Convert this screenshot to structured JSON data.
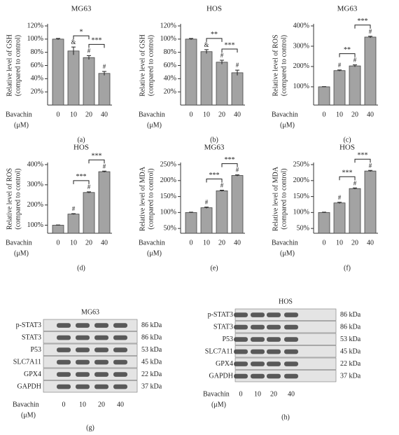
{
  "chart_data": [
    {
      "type": "bar",
      "title": "MG63",
      "ylabel": [
        "Relative level of GSH",
        "(compared to control)"
      ],
      "xlabel": [
        "Bavachin",
        "(μM)"
      ],
      "panel": "(a)",
      "categories": [
        "0",
        "10",
        "20",
        "40"
      ],
      "values": [
        100,
        82,
        72,
        48
      ],
      "errors": [
        1,
        6,
        3,
        3
      ],
      "markers": [
        null,
        "&",
        "#",
        "#"
      ],
      "color": "#a3a3a3",
      "brackets": [
        {
          "between": [
            "10",
            "20"
          ],
          "label": "*"
        },
        {
          "between": [
            "20",
            "40"
          ],
          "label": "***"
        }
      ],
      "ylim": [
        0,
        120
      ],
      "yticks": [
        {
          "value": 20,
          "label": "20%"
        },
        {
          "value": 40,
          "label": "40%"
        },
        {
          "value": 60,
          "label": "60%"
        },
        {
          "value": 80,
          "label": "80%"
        },
        {
          "value": 100,
          "label": "100%"
        },
        {
          "value": 120,
          "label": "120%"
        }
      ]
    },
    {
      "type": "bar",
      "title": "HOS",
      "ylabel": [
        "Relative level of GSH",
        "(compared to control)"
      ],
      "xlabel": [
        "Bavachin",
        "(μM)"
      ],
      "panel": "(b)",
      "categories": [
        "0",
        "10",
        "20",
        "40"
      ],
      "values": [
        100,
        81,
        65,
        49
      ],
      "errors": [
        1,
        3,
        3,
        4
      ],
      "markers": [
        null,
        "&",
        "#",
        "#"
      ],
      "color": "#a3a3a3",
      "brackets": [
        {
          "between": [
            "10",
            "20"
          ],
          "label": "**"
        },
        {
          "between": [
            "20",
            "40"
          ],
          "label": "***"
        }
      ],
      "ylim": [
        0,
        120
      ],
      "yticks": [
        {
          "value": 20,
          "label": "20%"
        },
        {
          "value": 40,
          "label": "40%"
        },
        {
          "value": 60,
          "label": "60%"
        },
        {
          "value": 80,
          "label": "80%"
        },
        {
          "value": 100,
          "label": "100%"
        },
        {
          "value": 120,
          "label": "120%"
        }
      ]
    },
    {
      "type": "bar",
      "title": "MG63",
      "ylabel": [
        "Relative level of ROS",
        "(compared to control)"
      ],
      "xlabel": [
        "Bavachin",
        "(μM)"
      ],
      "panel": "(c)",
      "categories": [
        "0",
        "10",
        "20",
        "40"
      ],
      "values": [
        100,
        180,
        203,
        345
      ],
      "errors": [
        1,
        3,
        5,
        4
      ],
      "markers": [
        null,
        "#",
        "#",
        "#"
      ],
      "color": "#a3a3a3",
      "brackets": [
        {
          "between": [
            "10",
            "20"
          ],
          "label": "**"
        },
        {
          "between": [
            "20",
            "40"
          ],
          "label": "***"
        }
      ],
      "ylim": [
        10,
        400
      ],
      "yticks": [
        {
          "value": 100,
          "label": "100%"
        },
        {
          "value": 200,
          "label": "200%"
        },
        {
          "value": 300,
          "label": "300%"
        },
        {
          "value": 400,
          "label": "400%"
        }
      ]
    },
    {
      "type": "bar",
      "title": "HOS",
      "ylabel": [
        "Relative level of ROS",
        "(compared to control)"
      ],
      "xlabel": [
        "Bavachin",
        "(μM)"
      ],
      "panel": "(d)",
      "categories": [
        "0",
        "10",
        "20",
        "40"
      ],
      "values": [
        100,
        155,
        262,
        365
      ],
      "errors": [
        1,
        2,
        3,
        3
      ],
      "markers": [
        null,
        "#",
        "#",
        "#"
      ],
      "color": "#a3a3a3",
      "brackets": [
        {
          "between": [
            "10",
            "20"
          ],
          "label": "***"
        },
        {
          "between": [
            "20",
            "40"
          ],
          "label": "***"
        }
      ],
      "ylim": [
        60,
        400
      ],
      "yticks": [
        {
          "value": 100,
          "label": "100%"
        },
        {
          "value": 200,
          "label": "200%"
        },
        {
          "value": 300,
          "label": "300%"
        },
        {
          "value": 400,
          "label": "400%"
        }
      ]
    },
    {
      "type": "bar",
      "title": "MG63",
      "ylabel": [
        "Relative level of MDA",
        "(compared to control)"
      ],
      "xlabel": [
        "Bavachin",
        "(μM)"
      ],
      "panel": "(e)",
      "categories": [
        "0",
        "10",
        "20",
        "40"
      ],
      "values": [
        100,
        115,
        168,
        216
      ],
      "errors": [
        1,
        2,
        2,
        2
      ],
      "markers": [
        null,
        "#",
        "#",
        "#"
      ],
      "color": "#a3a3a3",
      "brackets": [
        {
          "between": [
            "10",
            "20"
          ],
          "label": "***"
        },
        {
          "between": [
            "20",
            "40"
          ],
          "label": "***"
        }
      ],
      "ylim": [
        35,
        250
      ],
      "yticks": [
        {
          "value": 50,
          "label": "50%"
        },
        {
          "value": 100,
          "label": "100%"
        },
        {
          "value": 150,
          "label": "150%"
        },
        {
          "value": 200,
          "label": "200%"
        },
        {
          "value": 250,
          "label": "250%"
        }
      ]
    },
    {
      "type": "bar",
      "title": "HOS",
      "ylabel": [
        "Relative level of MDA",
        "(compared to control)"
      ],
      "xlabel": [
        "Bavachin",
        "(μM)"
      ],
      "panel": "(f)",
      "categories": [
        "0",
        "10",
        "20",
        "40"
      ],
      "values": [
        100,
        130,
        175,
        230
      ],
      "errors": [
        1,
        2,
        2,
        2
      ],
      "markers": [
        null,
        "#",
        "#",
        "#"
      ],
      "color": "#a3a3a3",
      "brackets": [
        {
          "between": [
            "10",
            "20"
          ],
          "label": "***"
        },
        {
          "between": [
            "20",
            "40"
          ],
          "label": "***"
        }
      ],
      "ylim": [
        35,
        250
      ],
      "yticks": [
        {
          "value": 50,
          "label": "50%"
        },
        {
          "value": 100,
          "label": "100%"
        },
        {
          "value": 150,
          "label": "150%"
        },
        {
          "value": 200,
          "label": "200%"
        },
        {
          "value": 250,
          "label": "250%"
        }
      ]
    }
  ],
  "blots": [
    {
      "title": "MG63",
      "panel": "(g)",
      "xlabel": [
        "Bavachin",
        "(μM)"
      ],
      "lanes": [
        "0",
        "10",
        "20",
        "40"
      ],
      "rows": [
        {
          "protein": "p-STAT3",
          "size": "86 kDa"
        },
        {
          "protein": "STAT3",
          "size": "86 kDa"
        },
        {
          "protein": "P53",
          "size": "53 kDa"
        },
        {
          "protein": "SLC7A11",
          "size": "45 kDa"
        },
        {
          "protein": "GPX4",
          "size": "22 kDa"
        },
        {
          "protein": "GAPDH",
          "size": "37 kDa"
        }
      ]
    },
    {
      "title": "HOS",
      "panel": "(h)",
      "xlabel": [
        "Bavachin",
        "(μM)"
      ],
      "lanes": [
        "0",
        "10",
        "20",
        "40"
      ],
      "rows": [
        {
          "protein": "p-STAT3",
          "size": "86 kDa"
        },
        {
          "protein": "STAT3",
          "size": "86 kDa"
        },
        {
          "protein": "P53",
          "size": "53 kDa"
        },
        {
          "protein": "SLC7A11",
          "size": "45 kDa"
        },
        {
          "protein": "GPX4",
          "size": "22 kDa"
        },
        {
          "protein": "GAPDH",
          "size": "37 kDa"
        }
      ]
    }
  ]
}
